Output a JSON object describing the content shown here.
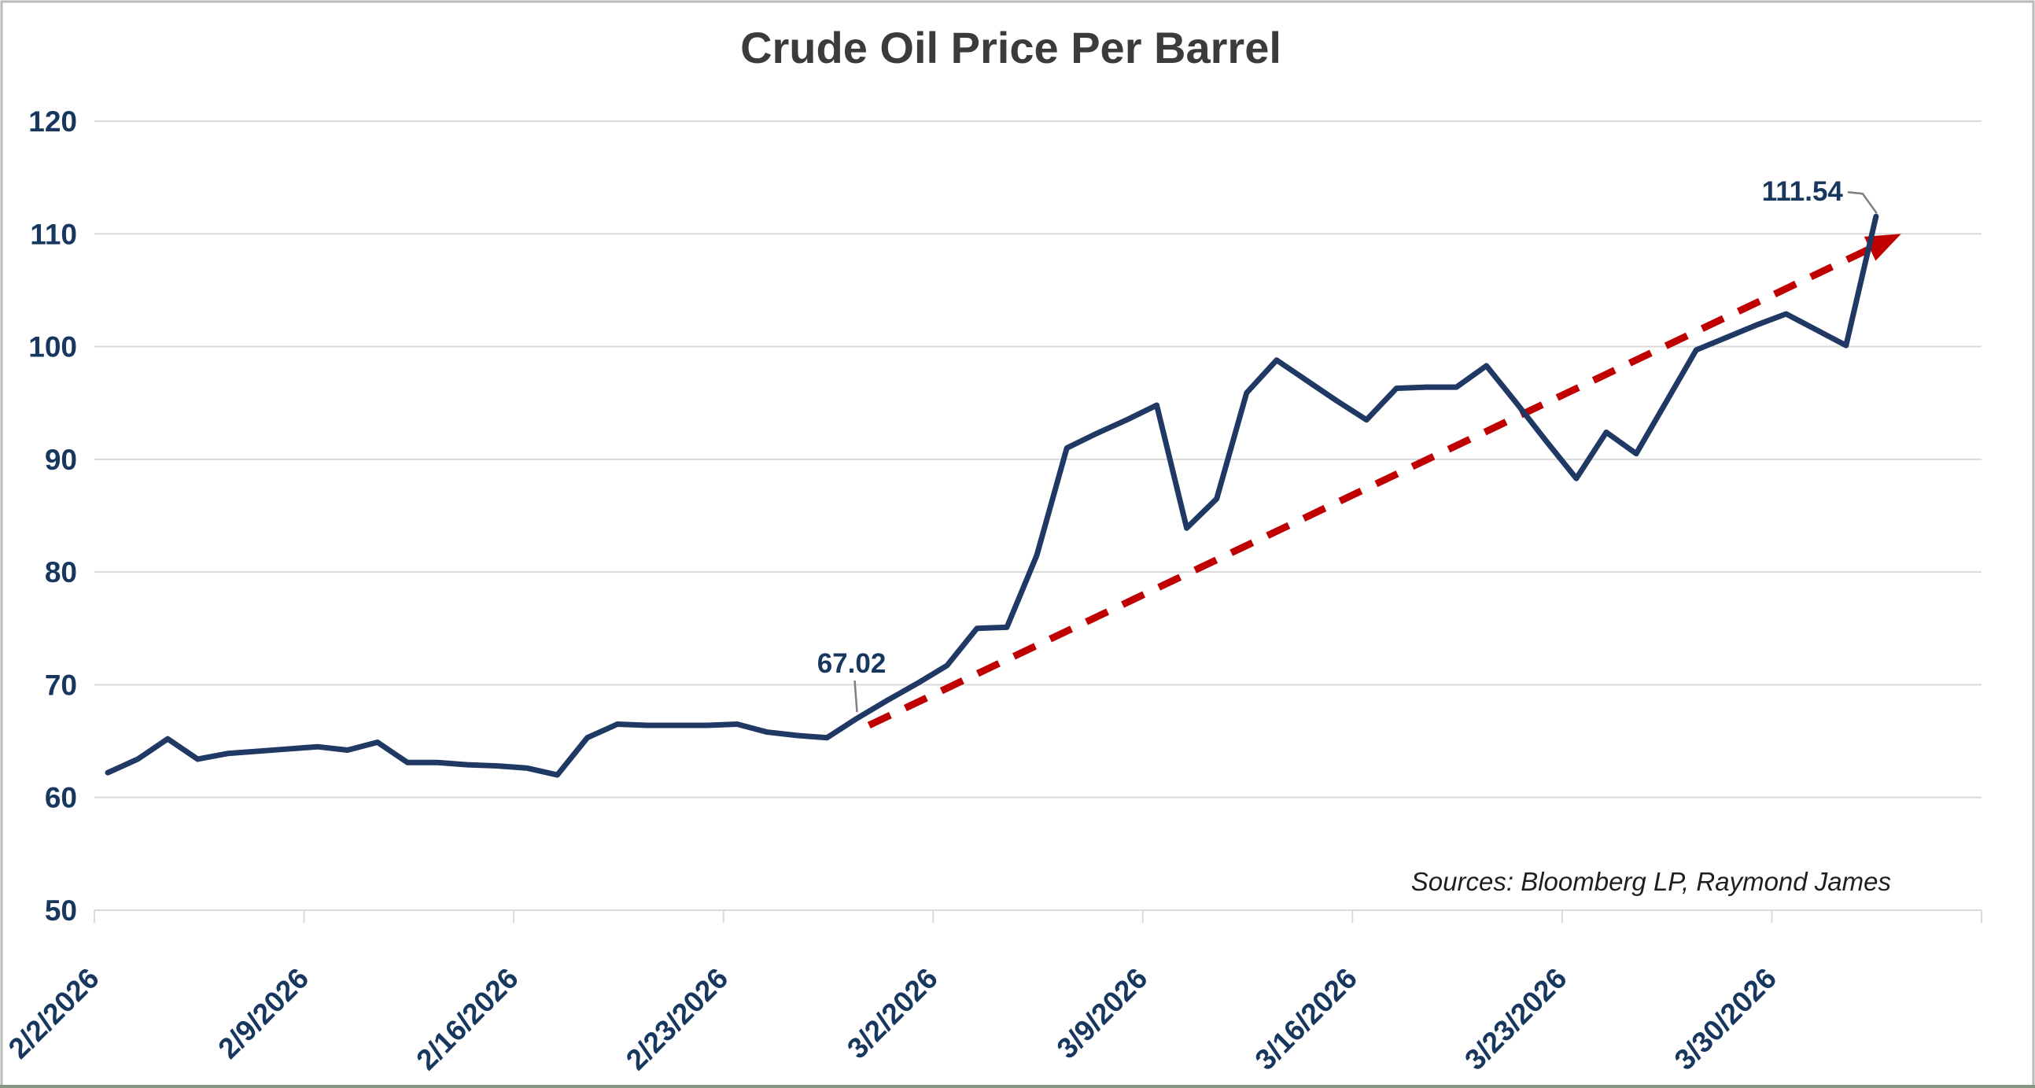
{
  "window": {
    "background": "#FFFFFF",
    "border_color": "#B9B9B9",
    "bottom_edge_color": "#84977F"
  },
  "colors": {
    "line": "#203864",
    "axis_label": "#17375E",
    "trend": "#C00000",
    "grid": "#D9D9D9",
    "leader": "#7F7F7F",
    "title": "#3B3B3B",
    "source": "#1F1F1F"
  },
  "chart_data": {
    "type": "line",
    "title": "Crude Oil Price Per Barrel",
    "source_note": "Sources: Bloomberg LP, Raymond James",
    "xlabel": "",
    "ylabel": "",
    "ylim": [
      50,
      120
    ],
    "grid": true,
    "legend": false,
    "y_ticks": [
      120,
      110,
      100,
      90,
      80,
      70,
      60,
      50
    ],
    "x_tick_labels": [
      "2/2/2026",
      "2/9/2026",
      "2/16/2026",
      "2/23/2026",
      "3/2/2026",
      "3/9/2026",
      "3/16/2026",
      "3/23/2026",
      "3/30/2026"
    ],
    "series": [
      {
        "name": "Crude Oil Price Per Barrel",
        "color": "#203864",
        "points": [
          {
            "date": "2/2/2026",
            "value": 62.2
          },
          {
            "date": "2/3/2026",
            "value": 63.4
          },
          {
            "date": "2/4/2026",
            "value": 65.2
          },
          {
            "date": "2/5/2026",
            "value": 63.4
          },
          {
            "date": "2/6/2026",
            "value": 63.9
          },
          {
            "date": "2/7/2026",
            "value": 64.1
          },
          {
            "date": "2/8/2026",
            "value": 64.3
          },
          {
            "date": "2/9/2026",
            "value": 64.5
          },
          {
            "date": "2/10/2026",
            "value": 64.2
          },
          {
            "date": "2/11/2026",
            "value": 64.9
          },
          {
            "date": "2/12/2026",
            "value": 63.1
          },
          {
            "date": "2/13/2026",
            "value": 63.1
          },
          {
            "date": "2/14/2026",
            "value": 62.9
          },
          {
            "date": "2/15/2026",
            "value": 62.8
          },
          {
            "date": "2/16/2026",
            "value": 62.6
          },
          {
            "date": "2/17/2026",
            "value": 62.0
          },
          {
            "date": "2/18/2026",
            "value": 65.3
          },
          {
            "date": "2/19/2026",
            "value": 66.5
          },
          {
            "date": "2/20/2026",
            "value": 66.4
          },
          {
            "date": "2/21/2026",
            "value": 66.4
          },
          {
            "date": "2/22/2026",
            "value": 66.4
          },
          {
            "date": "2/23/2026",
            "value": 66.5
          },
          {
            "date": "2/24/2026",
            "value": 65.8
          },
          {
            "date": "2/25/2026",
            "value": 65.5
          },
          {
            "date": "2/26/2026",
            "value": 65.3
          },
          {
            "date": "2/27/2026",
            "value": 67.02
          },
          {
            "date": "2/28/2026",
            "value": 68.6
          },
          {
            "date": "3/1/2026",
            "value": 70.1
          },
          {
            "date": "3/2/2026",
            "value": 71.7
          },
          {
            "date": "3/3/2026",
            "value": 75.0
          },
          {
            "date": "3/4/2026",
            "value": 75.1
          },
          {
            "date": "3/5/2026",
            "value": 81.5
          },
          {
            "date": "3/6/2026",
            "value": 91.0
          },
          {
            "date": "3/7/2026",
            "value": 92.3
          },
          {
            "date": "3/8/2026",
            "value": 93.5
          },
          {
            "date": "3/9/2026",
            "value": 94.8
          },
          {
            "date": "3/10/2026",
            "value": 83.9
          },
          {
            "date": "3/11/2026",
            "value": 86.5
          },
          {
            "date": "3/12/2026",
            "value": 95.9
          },
          {
            "date": "3/13/2026",
            "value": 98.8
          },
          {
            "date": "3/14/2026",
            "value": 97.0
          },
          {
            "date": "3/15/2026",
            "value": 95.2
          },
          {
            "date": "3/16/2026",
            "value": 93.5
          },
          {
            "date": "3/17/2026",
            "value": 96.3
          },
          {
            "date": "3/18/2026",
            "value": 96.4
          },
          {
            "date": "3/19/2026",
            "value": 96.4
          },
          {
            "date": "3/20/2026",
            "value": 98.3
          },
          {
            "date": "3/21/2026",
            "value": 95.0
          },
          {
            "date": "3/22/2026",
            "value": 91.6
          },
          {
            "date": "3/23/2026",
            "value": 88.3
          },
          {
            "date": "3/24/2026",
            "value": 92.4
          },
          {
            "date": "3/25/2026",
            "value": 90.5
          },
          {
            "date": "3/26/2026",
            "value": 95.1
          },
          {
            "date": "3/27/2026",
            "value": 99.7
          },
          {
            "date": "3/28/2026",
            "value": 100.8
          },
          {
            "date": "3/29/2026",
            "value": 101.9
          },
          {
            "date": "3/30/2026",
            "value": 102.9
          },
          {
            "date": "3/31/2026",
            "value": 101.5
          },
          {
            "date": "4/1/2026",
            "value": 100.1
          },
          {
            "date": "4/2/2026",
            "value": 111.54
          }
        ]
      }
    ],
    "trendline": {
      "style": "dashed",
      "color": "#C00000",
      "start": {
        "day_offset": 25.4,
        "value": 66.4
      },
      "end": {
        "day_offset": 59.6,
        "value": 109.7
      },
      "arrowhead": true
    },
    "annotations": [
      {
        "label": "67.02",
        "date": "2/27/2026",
        "value": 67.02
      },
      {
        "label": "111.54",
        "date": "4/2/2026",
        "value": 111.54
      }
    ]
  }
}
